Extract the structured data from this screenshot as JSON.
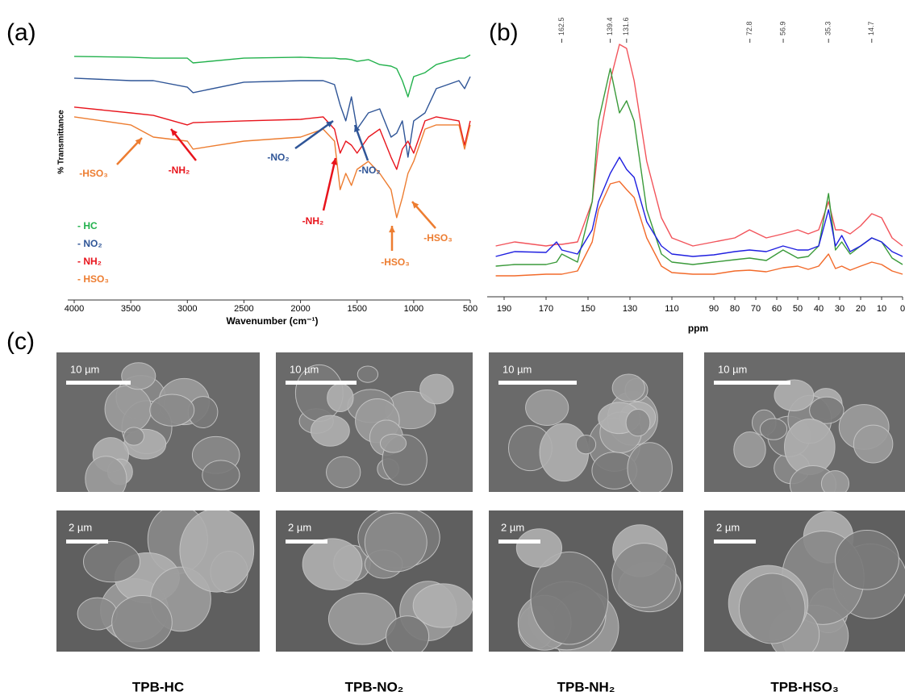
{
  "panels": [
    "(a)",
    "(b)",
    "(c)"
  ],
  "chart_data": [
    {
      "type": "line",
      "x_label": "Wavenumber (cm⁻¹)",
      "y_label": "% Transmittance",
      "x": [
        4000,
        3500,
        3300,
        3000,
        2950,
        2500,
        2000,
        1800,
        1700,
        1650,
        1600,
        1550,
        1500,
        1400,
        1300,
        1200,
        1150,
        1100,
        1050,
        1000,
        900,
        800,
        600,
        550,
        500
      ],
      "series": [
        {
          "name": "- HC",
          "color": "#22b14c",
          "values": [
            96.8,
            96.5,
            96.1,
            96.1,
            94.2,
            96.1,
            96.5,
            96.1,
            96.1,
            95.8,
            95.8,
            95.5,
            94.8,
            95.5,
            93.5,
            92.9,
            91.9,
            87.1,
            80.6,
            88.7,
            90.3,
            93.5,
            96.1,
            96.1,
            97.4
          ]
        },
        {
          "name": "- NO₂",
          "color": "#2f5597",
          "values": [
            88.1,
            87.1,
            87.1,
            84.5,
            82.3,
            86.5,
            87.1,
            87.1,
            85.5,
            77.4,
            71.0,
            80.6,
            67.7,
            74.2,
            75.8,
            64.5,
            66.1,
            71.0,
            56.5,
            71.0,
            74.2,
            83.9,
            87.1,
            83.9,
            88.7
          ]
        },
        {
          "name": "- NH₂",
          "color": "#e8141c",
          "values": [
            76.5,
            74.2,
            73.2,
            69.4,
            70.3,
            71.0,
            71.6,
            72.6,
            67.7,
            58.1,
            62.9,
            61.3,
            58.1,
            64.5,
            67.7,
            56.5,
            51.6,
            59.7,
            62.9,
            58.1,
            71.0,
            72.6,
            71.0,
            61.3,
            71.0
          ]
        },
        {
          "name": "- HSO₃",
          "color": "#ed7d31",
          "values": [
            72.6,
            69.4,
            64.5,
            62.9,
            59.7,
            62.9,
            64.5,
            67.7,
            62.9,
            43.5,
            50.0,
            45.2,
            51.6,
            54.8,
            50.0,
            43.5,
            32.3,
            40.3,
            50.0,
            54.8,
            67.7,
            69.4,
            69.4,
            59.7,
            69.4
          ]
        }
      ],
      "xlim": [
        4000,
        500
      ],
      "xticks": [
        4000,
        3500,
        3000,
        2500,
        2000,
        1500,
        1000,
        500
      ],
      "ylim": [
        0,
        100
      ],
      "legend": "lower left",
      "annotations": [
        {
          "text": "-HSO₃",
          "color": "#ed7d31"
        },
        {
          "text": "-NH₂",
          "color": "#e8141c"
        },
        {
          "text": "-NO₂",
          "color": "#2f5597"
        },
        {
          "text": "-NO₂",
          "color": "#2f5597"
        },
        {
          "text": "-NH₂",
          "color": "#e8141c"
        },
        {
          "text": "-HSO₃",
          "color": "#ed7d31"
        },
        {
          "text": "-HSO₃",
          "color": "#ed7d31"
        }
      ]
    },
    {
      "type": "line",
      "x_label": "ppm",
      "x": [
        194,
        185,
        170,
        165,
        162.5,
        155,
        148,
        145,
        139.4,
        135,
        131.6,
        128,
        122,
        115,
        110,
        100,
        90,
        80,
        73,
        65,
        57,
        50,
        45,
        40,
        35.3,
        32,
        29,
        25,
        20,
        14.7,
        10,
        5,
        0
      ],
      "series": [
        {
          "color": "#f2545b",
          "values": [
            40,
            45,
            40,
            42,
            42,
            45,
            95,
            165,
            245,
            290,
            285,
            245,
            145,
            75,
            50,
            40,
            45,
            50,
            60,
            50,
            55,
            60,
            55,
            60,
            95,
            60,
            60,
            55,
            65,
            80,
            75,
            50,
            40
          ]
        },
        {
          "color": "#3a9a3a",
          "values": [
            15,
            17,
            17,
            20,
            30,
            20,
            95,
            195,
            260,
            205,
            220,
            195,
            85,
            30,
            20,
            17,
            20,
            23,
            25,
            22,
            35,
            25,
            27,
            40,
            105,
            35,
            45,
            30,
            40,
            50,
            45,
            25,
            17
          ]
        },
        {
          "color": "#1f1fe0",
          "values": [
            27,
            33,
            32,
            45,
            35,
            30,
            60,
            95,
            130,
            150,
            135,
            125,
            70,
            40,
            30,
            27,
            29,
            33,
            35,
            33,
            40,
            35,
            35,
            40,
            85,
            40,
            53,
            33,
            40,
            50,
            45,
            33,
            27
          ]
        },
        {
          "color": "#f26a2a",
          "values": [
            3,
            3,
            5,
            5,
            5,
            9,
            45,
            85,
            117,
            120,
            110,
            100,
            50,
            15,
            7,
            5,
            5,
            9,
            10,
            8,
            13,
            15,
            11,
            15,
            30,
            12,
            15,
            10,
            15,
            20,
            17,
            9,
            5
          ]
        }
      ],
      "xlim": [
        195,
        0
      ],
      "xticks": [
        190,
        170,
        150,
        130,
        110,
        90,
        80,
        70,
        60,
        50,
        40,
        30,
        20,
        10,
        0
      ],
      "ylim": [
        0,
        290
      ],
      "peaks": [
        162.5,
        139.4,
        131.6,
        72.8,
        56.9,
        35.3,
        14.7
      ]
    }
  ],
  "sem": {
    "columns": [
      {
        "label": "TPB-HC",
        "scale_bars": [
          "10 µm",
          "2 µm"
        ]
      },
      {
        "label": "TPB-NO₂",
        "scale_bars": [
          "10 µm",
          "2 µm"
        ]
      },
      {
        "label": "TPB-NH₂",
        "scale_bars": [
          "10 µm",
          "2 µm"
        ]
      },
      {
        "label": "TPB-HSO₃",
        "scale_bars": [
          "10 µm",
          "2 µm"
        ]
      }
    ]
  }
}
